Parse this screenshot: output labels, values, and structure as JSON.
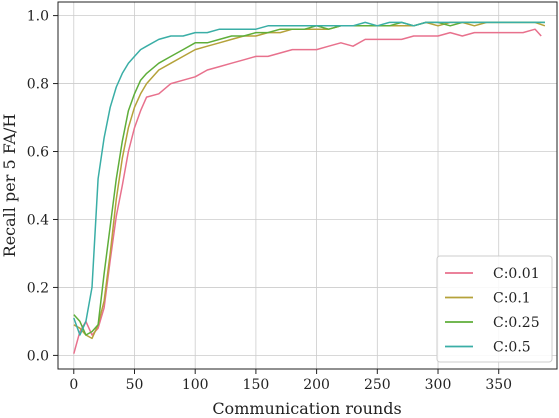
{
  "chart_data": {
    "type": "line",
    "title": "",
    "xlabel": "Communication rounds",
    "ylabel": "Recall per 5 FA/H",
    "xlim": [
      -13,
      398
    ],
    "ylim": [
      -0.04,
      1.04
    ],
    "xticks": [
      0,
      50,
      100,
      150,
      200,
      250,
      300,
      350
    ],
    "yticks": [
      0.0,
      0.2,
      0.4,
      0.6,
      0.8,
      1.0
    ],
    "grid": true,
    "legend_position": "lower right",
    "series": [
      {
        "name": "C:0.01",
        "color": "#e8718d",
        "x": [
          0,
          5,
          10,
          15,
          20,
          25,
          30,
          35,
          40,
          45,
          50,
          55,
          60,
          70,
          80,
          90,
          100,
          110,
          120,
          130,
          140,
          150,
          160,
          170,
          180,
          190,
          200,
          210,
          220,
          230,
          240,
          250,
          260,
          270,
          280,
          290,
          300,
          310,
          320,
          330,
          340,
          350,
          360,
          370,
          380,
          385
        ],
        "values": [
          0.005,
          0.07,
          0.1,
          0.06,
          0.08,
          0.14,
          0.28,
          0.41,
          0.5,
          0.6,
          0.67,
          0.72,
          0.76,
          0.77,
          0.8,
          0.81,
          0.82,
          0.84,
          0.85,
          0.86,
          0.87,
          0.88,
          0.88,
          0.89,
          0.9,
          0.9,
          0.9,
          0.91,
          0.92,
          0.91,
          0.93,
          0.93,
          0.93,
          0.93,
          0.94,
          0.94,
          0.94,
          0.95,
          0.94,
          0.95,
          0.95,
          0.95,
          0.95,
          0.95,
          0.96,
          0.94
        ]
      },
      {
        "name": "C:0.1",
        "color": "#b5a23a",
        "x": [
          0,
          5,
          10,
          15,
          20,
          25,
          30,
          35,
          40,
          45,
          50,
          55,
          60,
          70,
          80,
          90,
          100,
          110,
          120,
          130,
          140,
          150,
          160,
          170,
          180,
          190,
          200,
          210,
          220,
          230,
          240,
          250,
          260,
          270,
          280,
          290,
          300,
          310,
          320,
          330,
          340,
          350,
          360,
          370,
          380,
          388
        ],
        "values": [
          0.09,
          0.08,
          0.06,
          0.05,
          0.09,
          0.16,
          0.3,
          0.46,
          0.58,
          0.67,
          0.73,
          0.77,
          0.8,
          0.84,
          0.86,
          0.88,
          0.9,
          0.91,
          0.92,
          0.93,
          0.94,
          0.94,
          0.95,
          0.95,
          0.96,
          0.96,
          0.96,
          0.96,
          0.97,
          0.97,
          0.97,
          0.97,
          0.97,
          0.97,
          0.97,
          0.98,
          0.97,
          0.98,
          0.98,
          0.97,
          0.98,
          0.98,
          0.98,
          0.98,
          0.98,
          0.97
        ]
      },
      {
        "name": "C:0.25",
        "color": "#5fae3a",
        "x": [
          0,
          5,
          10,
          15,
          20,
          25,
          30,
          35,
          40,
          45,
          50,
          55,
          60,
          70,
          80,
          90,
          100,
          110,
          120,
          130,
          140,
          150,
          160,
          170,
          180,
          190,
          200,
          210,
          220,
          230,
          240,
          250,
          260,
          270,
          280,
          290,
          300,
          310,
          320,
          330,
          340,
          350,
          360,
          370,
          380,
          388
        ],
        "values": [
          0.12,
          0.1,
          0.06,
          0.07,
          0.09,
          0.24,
          0.38,
          0.52,
          0.63,
          0.72,
          0.77,
          0.81,
          0.83,
          0.86,
          0.88,
          0.9,
          0.92,
          0.92,
          0.93,
          0.94,
          0.94,
          0.95,
          0.95,
          0.96,
          0.96,
          0.96,
          0.97,
          0.96,
          0.97,
          0.97,
          0.97,
          0.97,
          0.97,
          0.98,
          0.97,
          0.98,
          0.98,
          0.97,
          0.98,
          0.98,
          0.98,
          0.98,
          0.98,
          0.98,
          0.98,
          0.98
        ]
      },
      {
        "name": "C:0.5",
        "color": "#3aaea6",
        "x": [
          0,
          5,
          10,
          15,
          20,
          25,
          30,
          35,
          40,
          45,
          50,
          55,
          60,
          70,
          80,
          90,
          100,
          110,
          120,
          130,
          140,
          150,
          160,
          170,
          180,
          190,
          200,
          210,
          220,
          230,
          240,
          250,
          260,
          270,
          280,
          290,
          300,
          310,
          320,
          330,
          340,
          350,
          360,
          370,
          380,
          388
        ],
        "values": [
          0.11,
          0.06,
          0.1,
          0.2,
          0.52,
          0.64,
          0.73,
          0.79,
          0.83,
          0.86,
          0.88,
          0.9,
          0.91,
          0.93,
          0.94,
          0.94,
          0.95,
          0.95,
          0.96,
          0.96,
          0.96,
          0.96,
          0.97,
          0.97,
          0.97,
          0.97,
          0.97,
          0.97,
          0.97,
          0.97,
          0.98,
          0.97,
          0.98,
          0.98,
          0.97,
          0.98,
          0.98,
          0.98,
          0.98,
          0.98,
          0.98,
          0.98,
          0.98,
          0.98,
          0.98,
          0.98
        ]
      }
    ]
  }
}
